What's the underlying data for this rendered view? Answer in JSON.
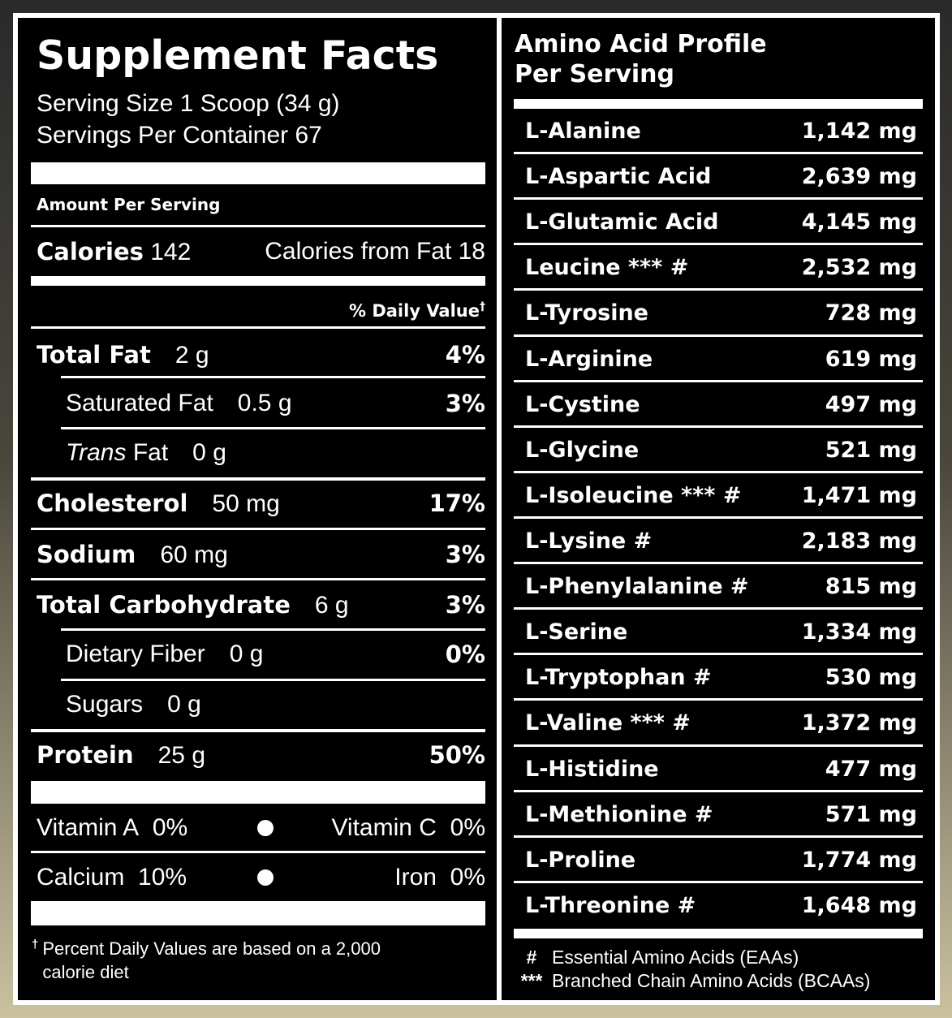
{
  "supplement_facts": {
    "title": "Supplement Facts",
    "serving_size": "Serving Size 1 Scoop (34 g)",
    "servings_per_container": "Servings Per Container 67",
    "amount_per_serving": "Amount Per Serving",
    "calories": {
      "label": "Calories",
      "value": "142",
      "from_fat": "Calories from Fat 18"
    },
    "daily_value_header": {
      "text": "% Daily Value",
      "mark": "†"
    },
    "nutrients": [
      {
        "name": "Total Fat",
        "amount": "2 g",
        "dv": "4%"
      },
      {
        "name": "Saturated Fat",
        "amount": "0.5 g",
        "dv": "3%"
      },
      {
        "name_italic": "Trans",
        "name": "Fat",
        "amount": "0 g"
      },
      {
        "name": "Cholesterol",
        "amount": "50 mg",
        "dv": "17%"
      },
      {
        "name": "Sodium",
        "amount": "60 mg",
        "dv": "3%"
      },
      {
        "name": "Total Carbohydrate",
        "amount": "6 g",
        "dv": "3%"
      },
      {
        "name": "Dietary Fiber",
        "amount": "0 g",
        "dv": "0%"
      },
      {
        "name": "Sugars",
        "amount": "0 g"
      },
      {
        "name": "Protein",
        "amount": "25 g",
        "dv": "50%"
      }
    ],
    "vitamins": [
      {
        "name": "Vitamin A",
        "dv": "0%"
      },
      {
        "name": "Vitamin C",
        "dv": "0%"
      },
      {
        "name": "Calcium",
        "dv": "10%"
      },
      {
        "name": "Iron",
        "dv": "0%"
      }
    ],
    "footnote": {
      "mark": "†",
      "text": "Percent Daily Values are based on a 2,000 calorie diet"
    }
  },
  "amino_acid_profile": {
    "title_lines": [
      "Amino Acid Profile",
      "Per Serving"
    ],
    "amino_acids": [
      {
        "name": "L-Alanine",
        "amount": "1,142 mg"
      },
      {
        "name": "L-Aspartic Acid",
        "amount": "2,639 mg"
      },
      {
        "name": "L-Glutamic Acid",
        "amount": "4,145 mg"
      },
      {
        "name": "Leucine *** #",
        "amount": "2,532 mg"
      },
      {
        "name": "L-Tyrosine",
        "amount": "728 mg"
      },
      {
        "name": "L-Arginine",
        "amount": "619 mg"
      },
      {
        "name": "L-Cystine",
        "amount": "497 mg"
      },
      {
        "name": "L-Glycine",
        "amount": "521 mg"
      },
      {
        "name": "L-Isoleucine *** #",
        "amount": "1,471 mg"
      },
      {
        "name": "L-Lysine #",
        "amount": "2,183 mg"
      },
      {
        "name": "L-Phenylalanine #",
        "amount": "815 mg"
      },
      {
        "name": "L-Serine",
        "amount": "1,334 mg"
      },
      {
        "name": "L-Tryptophan #",
        "amount": "530 mg"
      },
      {
        "name": "L-Valine *** #",
        "amount": "1,372 mg"
      },
      {
        "name": "L-Histidine",
        "amount": "477 mg"
      },
      {
        "name": "L-Methionine #",
        "amount": "571 mg"
      },
      {
        "name": "L-Proline",
        "amount": "1,774 mg"
      },
      {
        "name": "L-Threonine #",
        "amount": "1,648 mg"
      }
    ],
    "footnotes": [
      {
        "symbol": "#",
        "text": "Essential Amino Acids (EAAs)"
      },
      {
        "symbol": "***",
        "text": "Branched Chain Amino Acids (BCAAs)"
      }
    ]
  }
}
